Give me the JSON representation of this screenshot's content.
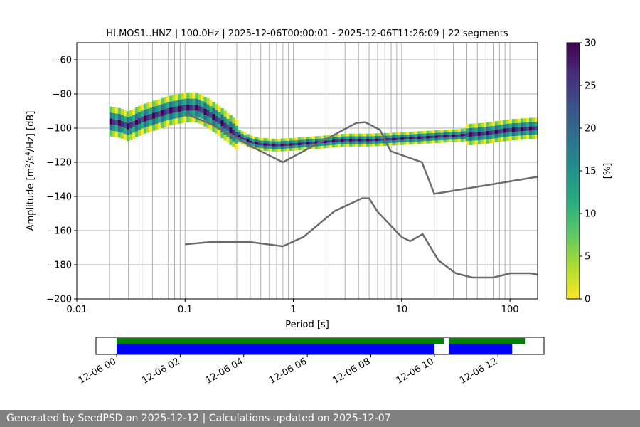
{
  "chart_data": [
    {
      "type": "heatmap",
      "title": "HI.MOS1..HNZ | 100.0Hz | 2025-12-06T00:00:01 - 2025-12-06T11:26:09 | 22 segments",
      "xlabel": "Period [s]",
      "ylabel_parts": [
        "Amplitude [m",
        "2",
        "/s",
        "4",
        "/Hz] [dB]"
      ],
      "x_scale": "log",
      "xlim": [
        0.01,
        180
      ],
      "ylim": [
        -200,
        -50
      ],
      "grid": true,
      "x_ticks": [
        {
          "v": 0.01,
          "label": "0.01"
        },
        {
          "v": 0.1,
          "label": "0.1"
        },
        {
          "v": 1,
          "label": "1"
        },
        {
          "v": 10,
          "label": "10"
        },
        {
          "v": 100,
          "label": "100"
        }
      ],
      "y_ticks": [
        {
          "v": -60,
          "label": "−60"
        },
        {
          "v": -80,
          "label": "−80"
        },
        {
          "v": -100,
          "label": "−100"
        },
        {
          "v": -120,
          "label": "−120"
        },
        {
          "v": -140,
          "label": "−140"
        },
        {
          "v": -160,
          "label": "−160"
        },
        {
          "v": -180,
          "label": "−180"
        },
        {
          "v": -200,
          "label": "−200"
        }
      ],
      "colorbar": {
        "label": "[%]",
        "range": [
          0,
          30
        ],
        "ticks": [
          {
            "v": 0,
            "label": "0"
          },
          {
            "v": 5,
            "label": "5"
          },
          {
            "v": 10,
            "label": "10"
          },
          {
            "v": 15,
            "label": "15"
          },
          {
            "v": 20,
            "label": "20"
          },
          {
            "v": 25,
            "label": "25"
          },
          {
            "v": 30,
            "label": "30"
          }
        ],
        "colormap": "viridis_r"
      },
      "psd_band": [
        [
          0.02,
          -96
        ],
        [
          0.025,
          -97
        ],
        [
          0.03,
          -99
        ],
        [
          0.04,
          -95
        ],
        [
          0.05,
          -93
        ],
        [
          0.07,
          -90
        ],
        [
          0.1,
          -88
        ],
        [
          0.13,
          -88
        ],
        [
          0.16,
          -91
        ],
        [
          0.2,
          -95
        ],
        [
          0.25,
          -100
        ],
        [
          0.3,
          -104
        ],
        [
          0.4,
          -108
        ],
        [
          0.5,
          -109.5
        ],
        [
          0.7,
          -110
        ],
        [
          1,
          -109.5
        ],
        [
          2,
          -108
        ],
        [
          3,
          -107
        ],
        [
          5,
          -107
        ],
        [
          8,
          -106.5
        ],
        [
          15,
          -105.5
        ],
        [
          30,
          -104.5
        ],
        [
          60,
          -103
        ],
        [
          100,
          -101
        ],
        [
          180,
          -100
        ]
      ],
      "nhnm": [
        [
          0.1,
          -91.5
        ],
        [
          0.17,
          -97.4
        ],
        [
          0.4,
          -110.5
        ],
        [
          0.8,
          -120
        ],
        [
          3.8,
          -97
        ],
        [
          4.6,
          -96.5
        ],
        [
          6.3,
          -101
        ],
        [
          7.9,
          -113.5
        ],
        [
          15.4,
          -120
        ],
        [
          20,
          -138.5
        ],
        [
          180,
          -128.5
        ]
      ],
      "nlnm": [
        [
          0.1,
          -168
        ],
        [
          0.17,
          -166.7
        ],
        [
          0.4,
          -166.7
        ],
        [
          0.8,
          -169.2
        ],
        [
          1.24,
          -163.7
        ],
        [
          2.4,
          -148.6
        ],
        [
          4.3,
          -141.1
        ],
        [
          5,
          -141.1
        ],
        [
          6,
          -149
        ],
        [
          10,
          -163.8
        ],
        [
          12,
          -166.2
        ],
        [
          15.6,
          -162.1
        ],
        [
          21.9,
          -177.5
        ],
        [
          31.6,
          -185
        ],
        [
          45,
          -187.5
        ],
        [
          70,
          -187.5
        ],
        [
          101,
          -185
        ],
        [
          154,
          -185
        ],
        [
          180,
          -185.8
        ]
      ]
    },
    {
      "type": "timeline",
      "x_ticks": [
        "12-06 00",
        "12-06 02",
        "12-06 04",
        "12-06 06",
        "12-06 08",
        "12-06 10",
        "12-06 12"
      ],
      "range_hours": [
        -0.65,
        13.45
      ],
      "tick_hours": [
        0,
        2,
        4,
        6,
        8,
        10,
        12
      ],
      "green_segments": [
        [
          0.0,
          10.3
        ],
        [
          10.45,
          12.85
        ]
      ],
      "blue_segments": [
        [
          0.0,
          10.0
        ],
        [
          10.45,
          12.45
        ]
      ],
      "colors": {
        "green": "#008000",
        "blue": "#0000ff"
      }
    }
  ],
  "colors": {
    "curve": "#6b6b6b",
    "grid": "#b0b0b0",
    "footer_bg": "#808080"
  },
  "footer": {
    "text": "Generated by SeedPSD on 2025-12-12 | Calculations updated on 2025-12-07"
  }
}
